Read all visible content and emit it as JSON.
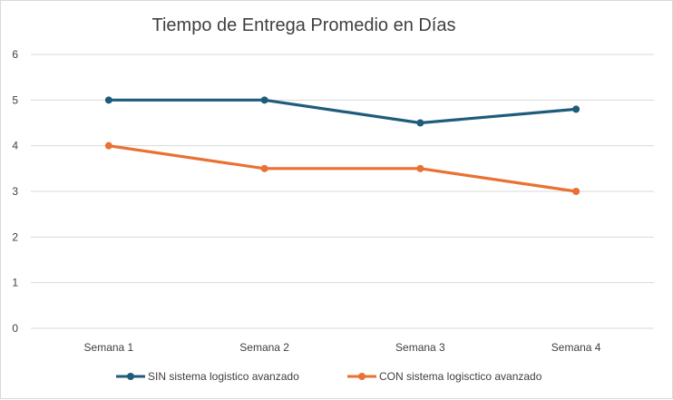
{
  "chart_data": {
    "type": "line",
    "title": "Tiempo de Entrega Promedio en Días",
    "xlabel": "",
    "ylabel": "",
    "categories": [
      "Semana 1",
      "Semana 2",
      "Semana 3",
      "Semana 4"
    ],
    "ylim": [
      0,
      6
    ],
    "yticks": [
      0,
      1,
      2,
      3,
      4,
      5,
      6
    ],
    "grid": true,
    "legend_position": "bottom",
    "series": [
      {
        "name": "SIN sistema logistico avanzado",
        "values": [
          5,
          5,
          4.5,
          4.8
        ],
        "color": "#1f5c7a"
      },
      {
        "name": "CON sistema logisctico avanzado",
        "values": [
          4,
          3.5,
          3.5,
          3
        ],
        "color": "#e97132"
      }
    ]
  }
}
